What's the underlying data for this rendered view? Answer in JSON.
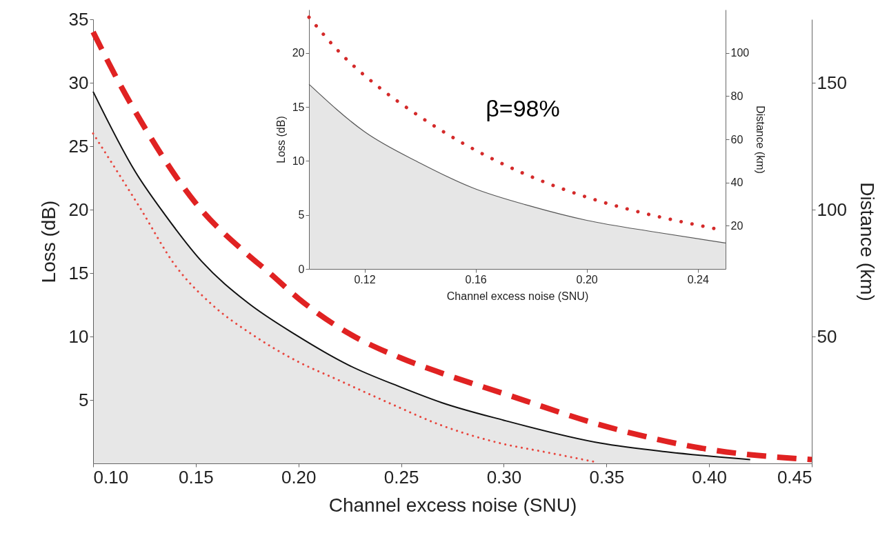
{
  "chart_data": [
    {
      "type": "line",
      "xlabel": "Channel excess noise (SNU)",
      "ylabel": "Loss (dB)",
      "y2label": "Distance (km)",
      "xlim": [
        0.1,
        0.45
      ],
      "xticks": [
        {
          "value": 0.1,
          "label": "0.10"
        },
        {
          "value": 0.15,
          "label": "0.15"
        },
        {
          "value": 0.2,
          "label": "0.20"
        },
        {
          "value": 0.25,
          "label": "0.25"
        },
        {
          "value": 0.3,
          "label": "0.30"
        },
        {
          "value": 0.35,
          "label": "0.35"
        },
        {
          "value": 0.4,
          "label": "0.40"
        },
        {
          "value": 0.45,
          "label": "0.45"
        }
      ],
      "ylim": [
        0,
        35
      ],
      "yticks": [
        5,
        10,
        15,
        20,
        25,
        30,
        35
      ],
      "y2lim": [
        0,
        175
      ],
      "y2ticks": [
        50,
        100,
        150
      ],
      "grid": false,
      "series": [
        {
          "type": "area",
          "color": "#111111",
          "line_style": "solid",
          "x": [
            0.1,
            0.1205,
            0.135,
            0.153,
            0.175,
            0.199,
            0.225,
            0.25,
            0.2696,
            0.3,
            0.347,
            0.38,
            0.42
          ],
          "values": [
            29.3,
            23.0,
            19.6,
            15.9,
            12.7,
            10.1,
            7.7,
            6.0,
            4.8,
            3.4,
            1.6,
            0.9,
            0.3
          ]
        },
        {
          "type": "line",
          "color": "#e8473f",
          "line_style": "dotted",
          "x": [
            0.1,
            0.123,
            0.14,
            0.158,
            0.178,
            0.2,
            0.219,
            0.245,
            0.2696,
            0.298,
            0.32,
            0.345
          ],
          "values": [
            26.0,
            20.1,
            15.6,
            12.5,
            10.1,
            8.0,
            6.6,
            4.7,
            3.0,
            1.6,
            0.9,
            0.1
          ]
        },
        {
          "type": "line",
          "color": "#e02222",
          "line_style": "dashed",
          "x": [
            0.1,
            0.113,
            0.125,
            0.15,
            0.175,
            0.186,
            0.2,
            0.225,
            0.25,
            0.27,
            0.3,
            0.35,
            0.4,
            0.45
          ],
          "values": [
            34.0,
            29.9,
            26.5,
            20.5,
            16.5,
            15.0,
            13.0,
            10.2,
            8.3,
            7.1,
            5.5,
            2.9,
            1.1,
            0.3
          ]
        }
      ]
    },
    {
      "type": "line",
      "xlabel": "Channel excess noise (SNU)",
      "ylabel": "Loss (dB)",
      "y2label": "Distance (km)",
      "xlim": [
        0.1,
        0.25
      ],
      "xticks": [
        0.12,
        0.16,
        {
          "value": 0.2,
          "label": "0.20"
        },
        0.24
      ],
      "ylim": [
        0,
        24
      ],
      "yticks": [
        0,
        5,
        10,
        15,
        20
      ],
      "y2lim": [
        0,
        120
      ],
      "y2ticks": [
        20,
        40,
        60,
        80,
        100
      ],
      "grid": false,
      "annotations": [
        "β=98%"
      ],
      "series": [
        {
          "type": "area",
          "color": "#555555",
          "line_style": "solid",
          "x": [
            0.1,
            0.12,
            0.14,
            0.159,
            0.18,
            0.2,
            0.225,
            0.25
          ],
          "values": [
            17.1,
            12.7,
            9.8,
            7.5,
            5.8,
            4.5,
            3.4,
            2.4
          ]
        },
        {
          "type": "line",
          "color": "#d42a2a",
          "line_style": "dotted",
          "x": [
            0.1,
            0.1116,
            0.1248,
            0.1388,
            0.1536,
            0.1691,
            0.1852,
            0.2018,
            0.2184,
            0.2354,
            0.2468
          ],
          "values": [
            23.3,
            19.9,
            16.9,
            14.3,
            11.9,
            9.8,
            8.0,
            6.5,
            5.3,
            4.3,
            3.7
          ]
        }
      ]
    }
  ]
}
